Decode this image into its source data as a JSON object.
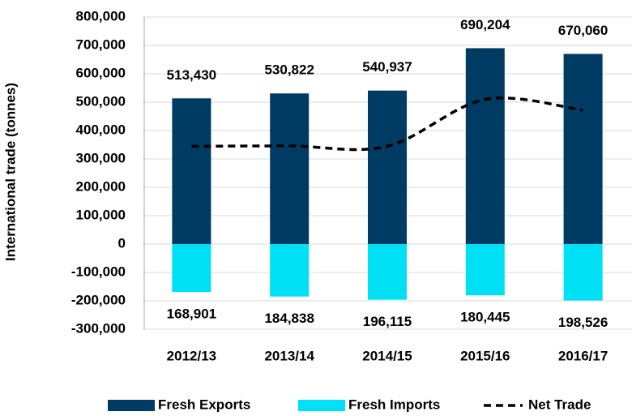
{
  "chart_data": {
    "type": "bar",
    "y_label": "International trade (tonnes)",
    "categories": [
      "2012/13",
      "2013/14",
      "2014/15",
      "2015/16",
      "2016/17"
    ],
    "series": [
      {
        "name": "Fresh Exports",
        "color": "#003b63",
        "values": [
          513430,
          530822,
          540937,
          690204,
          670060
        ],
        "value_labels": [
          "513,430",
          "530,822",
          "540,937",
          "690,204",
          "670,060"
        ]
      },
      {
        "name": "Fresh Imports",
        "color": "#00e0f5",
        "values": [
          -168901,
          -184838,
          -196115,
          -180445,
          -198526
        ],
        "value_labels": [
          "168,901",
          "184,838",
          "196,115",
          "180,445",
          "198,526"
        ]
      },
      {
        "name": "Net Trade",
        "type": "line",
        "color": "#000000",
        "dashed": true,
        "values": [
          344529,
          345984,
          344822,
          509759,
          471534
        ]
      }
    ],
    "ylim": [
      -300000,
      800000
    ],
    "yticks": [
      {
        "value": -300000,
        "label": "-300,000"
      },
      {
        "value": -200000,
        "label": "-200,000"
      },
      {
        "value": -100000,
        "label": "-100,000"
      },
      0,
      {
        "value": 100000,
        "label": "100,000"
      },
      {
        "value": 200000,
        "label": "200,000"
      },
      {
        "value": 300000,
        "label": "300,000"
      },
      {
        "value": 400000,
        "label": "400,000"
      },
      {
        "value": 500000,
        "label": "500,000"
      },
      {
        "value": 600000,
        "label": "600,000"
      },
      {
        "value": 700000,
        "label": "700,000"
      },
      {
        "value": 800000,
        "label": "800,000"
      }
    ],
    "grid": true,
    "legend": "bottom"
  }
}
